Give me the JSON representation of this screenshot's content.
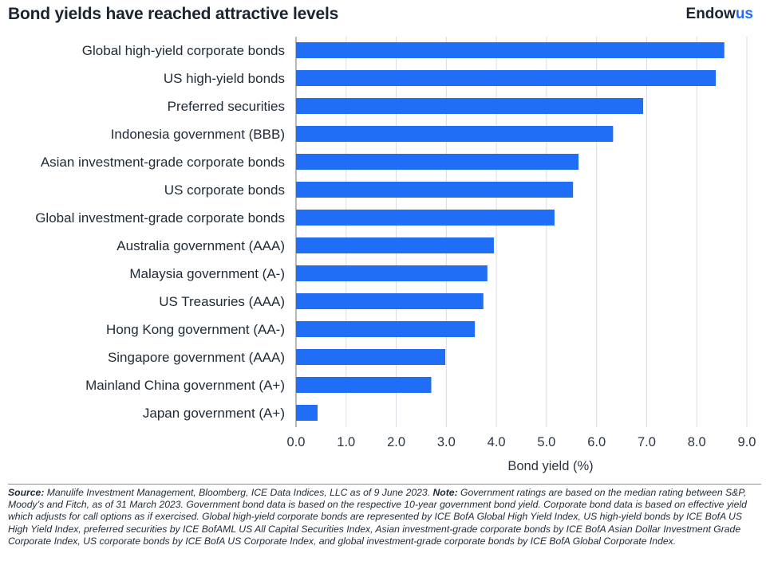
{
  "header": {
    "title": "Bond yields have reached attractive levels",
    "logo_main": "Endow",
    "logo_accent": "us"
  },
  "chart_data": {
    "type": "bar",
    "orientation": "horizontal",
    "categories": [
      "Global high-yield corporate bonds",
      "US high-yield bonds",
      "Preferred securities",
      "Indonesia government (BBB)",
      "Asian investment-grade corporate bonds",
      "US corporate bonds",
      "Global investment-grade corporate bonds",
      "Australia government (AAA)",
      "Malaysia government (A-)",
      "US Treasuries (AAA)",
      "Hong Kong government (AA-)",
      "Singapore government (AAA)",
      "Mainland China government (A+)",
      "Japan government (A+)"
    ],
    "values": [
      8.55,
      8.38,
      6.93,
      6.33,
      5.64,
      5.53,
      5.16,
      3.95,
      3.82,
      3.74,
      3.57,
      2.98,
      2.7,
      0.43
    ],
    "xlabel": "Bond yield (%)",
    "xlim": [
      0,
      9
    ],
    "xticks": [
      "0.0",
      "1.0",
      "2.0",
      "3.0",
      "4.0",
      "5.0",
      "6.0",
      "7.0",
      "8.0",
      "9.0"
    ],
    "grid": "vertical",
    "bar_color": "#1f6ef5"
  },
  "footnote": {
    "source_label": "Source:",
    "source_text": " Manulife Investment Management, Bloomberg, ICE Data Indices, LLC as of 9 June 2023. ",
    "note_label": "Note:",
    "note_text": " Government ratings are based on the median rating between S&P, Moody’s and Fitch, as of 31 March 2023. Government bond data is based on the respective 10-year government bond yield. Corporate bond data is based on effective yield which adjusts for call options as if exercised. Global high-yield corporate bonds are represented by ICE BofA Global High Yield Index, US high-yield bonds by ICE BofA US High Yield Index, preferred securities by ICE BofAML US All Capital Securities Index, Asian investment-grade corporate bonds by ICE BofA Asian Dollar Investment Grade Corporate Index, US corporate bonds by ICE BofA US Corporate Index, and global investment-grade corporate bonds by ICE BofA Global Corporate Index."
  }
}
